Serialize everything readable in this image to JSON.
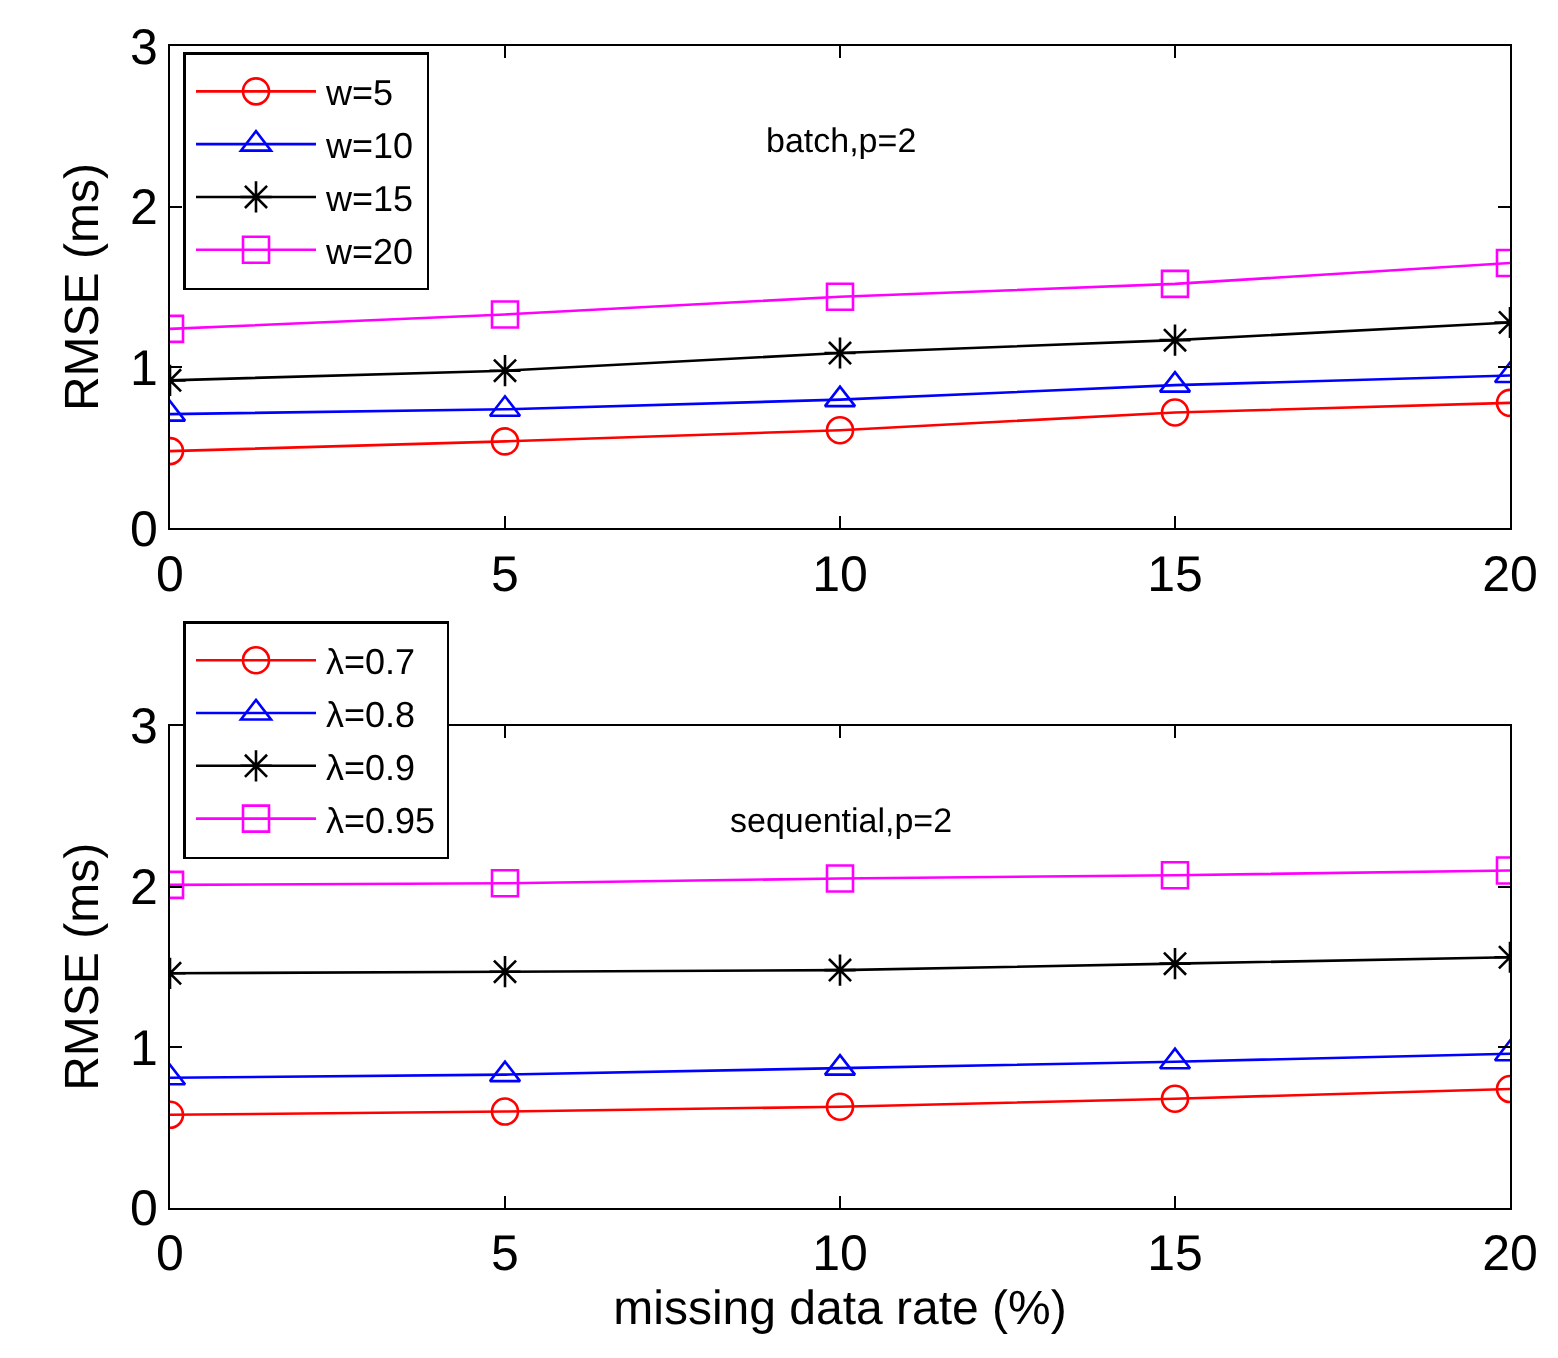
{
  "chart_data": [
    {
      "type": "line",
      "ylabel": "RMSE (ms)",
      "annotations": [
        "batch,p=2"
      ],
      "x": [
        0,
        5,
        10,
        15,
        20
      ],
      "xlim": [
        0,
        20
      ],
      "xticks": [
        0,
        5,
        10,
        15,
        20
      ],
      "ylim": [
        0,
        3
      ],
      "yticks": [
        0,
        1,
        2,
        3
      ],
      "legend": "top left",
      "line_style": "solid",
      "series": [
        {
          "name": "w=5",
          "color": "#ff0000",
          "marker": "circle",
          "values": [
            0.48,
            0.54,
            0.61,
            0.72,
            0.78
          ]
        },
        {
          "name": "w=10",
          "color": "#0000ff",
          "marker": "triangle",
          "values": [
            0.71,
            0.74,
            0.8,
            0.89,
            0.95
          ]
        },
        {
          "name": "w=15",
          "color": "#000000",
          "marker": "cross",
          "values": [
            0.92,
            0.98,
            1.09,
            1.17,
            1.28
          ]
        },
        {
          "name": "w=20",
          "color": "#ff00ff",
          "marker": "square",
          "values": [
            1.24,
            1.33,
            1.44,
            1.52,
            1.65
          ]
        }
      ]
    },
    {
      "type": "line",
      "xlabel": "missing data rate (%)",
      "ylabel": "RMSE (ms)",
      "annotations": [
        "sequential,p=2"
      ],
      "x": [
        0,
        5,
        10,
        15,
        20
      ],
      "xlim": [
        0,
        20
      ],
      "xticks": [
        0,
        5,
        10,
        15,
        20
      ],
      "ylim": [
        0,
        3
      ],
      "yticks": [
        0,
        1,
        2,
        3
      ],
      "legend": "top left",
      "line_style": "solid",
      "series": [
        {
          "name": "λ=0.7",
          "color": "#ff0000",
          "marker": "circle",
          "values": [
            0.58,
            0.6,
            0.63,
            0.68,
            0.74
          ]
        },
        {
          "name": "λ=0.8",
          "color": "#0000ff",
          "marker": "triangle",
          "values": [
            0.81,
            0.83,
            0.87,
            0.91,
            0.96
          ]
        },
        {
          "name": "λ=0.9",
          "color": "#000000",
          "marker": "cross",
          "values": [
            1.46,
            1.47,
            1.48,
            1.52,
            1.56
          ]
        },
        {
          "name": "λ=0.95",
          "color": "#ff00ff",
          "marker": "square",
          "values": [
            2.01,
            2.02,
            2.05,
            2.07,
            2.1
          ]
        }
      ]
    }
  ]
}
